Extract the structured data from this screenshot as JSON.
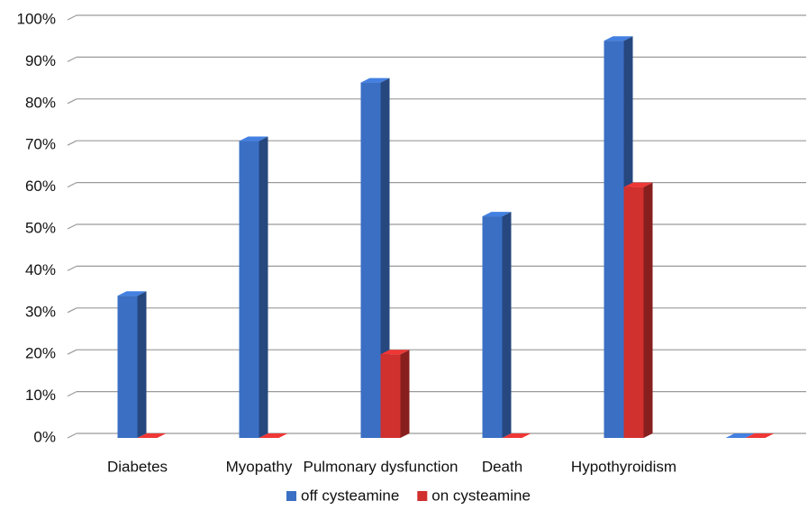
{
  "chart_data": {
    "type": "bar3d",
    "categories": [
      "Diabetes",
      "Myopathy",
      "Pulmonary dysfunction",
      "Death",
      "Hypothyroidism",
      null
    ],
    "series": [
      {
        "name": "off cysteamine",
        "color": "#3a6fc4",
        "values": [
          34,
          71,
          85,
          53,
          95,
          0
        ]
      },
      {
        "name": "on cysteamine",
        "color": "#d0302e",
        "values": [
          0,
          0,
          20,
          0,
          60,
          0
        ]
      }
    ],
    "ylim": [
      0,
      100
    ],
    "yticks": [
      {
        "value": 0,
        "label": "0%"
      },
      {
        "value": 10,
        "label": "10%"
      },
      {
        "value": 20,
        "label": "20%"
      },
      {
        "value": 30,
        "label": "30%"
      },
      {
        "value": 40,
        "label": "40%"
      },
      {
        "value": 50,
        "label": "50%"
      },
      {
        "value": 60,
        "label": "60%"
      },
      {
        "value": 70,
        "label": "70%"
      },
      {
        "value": 80,
        "label": "80%"
      },
      {
        "value": 90,
        "label": "90%"
      },
      {
        "value": 100,
        "label": "100%"
      }
    ],
    "grid": true,
    "legend": "bottom"
  }
}
